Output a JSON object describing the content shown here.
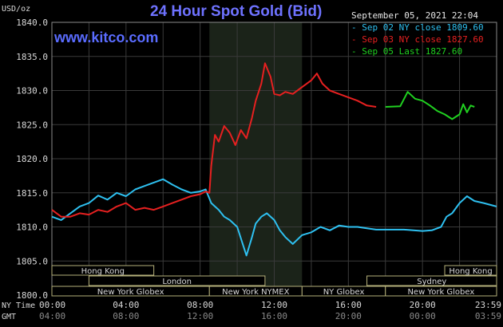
{
  "header": {
    "title": "24 Hour Spot Gold (Bid)",
    "site": "www.kitco.com",
    "y_unit": "USD/oz",
    "date": "September 05, 2021 22:04"
  },
  "legend": [
    {
      "label": "Sep 02 NY close 1809.60",
      "color": "#2ec0f0"
    },
    {
      "label": "Sep 03 NY close 1827.60",
      "color": "#e62020"
    },
    {
      "label": "Sep 05 Last 1827.60",
      "color": "#20d020"
    }
  ],
  "axis_row_labels": {
    "ny_time": "NY Time",
    "gmt": "GMT"
  },
  "chart_data": {
    "type": "line",
    "title": "24 Hour Spot Gold (Bid)",
    "ylabel": "USD/oz",
    "ylim": [
      1800,
      1840
    ],
    "xlim": [
      0,
      24
    ],
    "grid": true,
    "legend_position": "top-right",
    "y_ticks": [
      "1840.0",
      "1835.0",
      "1830.0",
      "1825.0",
      "1820.0",
      "1815.0",
      "1810.0",
      "1805.0",
      "1800.0"
    ],
    "x_ticks_ny": [
      "00:00",
      "04:00",
      "08:00",
      "12:00",
      "16:00",
      "20:00",
      "23:59"
    ],
    "x_ticks_gmt": [
      "04:00",
      "08:00",
      "12:00",
      "16:00",
      "20:00",
      "00:00",
      "03:59"
    ],
    "shaded_session": [
      8.5,
      13.5
    ],
    "sessions": [
      {
        "name": "Hong Kong",
        "start": 0,
        "end": 5.5,
        "row": 0
      },
      {
        "name": "Hong Kong",
        "start": 21.2,
        "end": 24,
        "row": 0
      },
      {
        "name": "London",
        "start": 2,
        "end": 11.5,
        "row": 1
      },
      {
        "name": "Sydney",
        "start": 17,
        "end": 24,
        "row": 1
      },
      {
        "name": "New York Globex",
        "start": 0,
        "end": 8.5,
        "row": 2
      },
      {
        "name": "New York NYMEX",
        "start": 8.5,
        "end": 13.5,
        "row": 2
      },
      {
        "name": "NY Globex",
        "start": 13.5,
        "end": 18,
        "row": 2
      },
      {
        "name": "New York Globex",
        "start": 18,
        "end": 24,
        "row": 2
      }
    ],
    "series": [
      {
        "name": "Sep 02 NY close 1809.60",
        "color": "#2ec0f0",
        "points": [
          [
            0,
            1811.5
          ],
          [
            0.5,
            1811.0
          ],
          [
            1.0,
            1812.0
          ],
          [
            1.5,
            1813.0
          ],
          [
            2.0,
            1813.5
          ],
          [
            2.5,
            1814.6
          ],
          [
            3.0,
            1814.0
          ],
          [
            3.5,
            1815.0
          ],
          [
            4.0,
            1814.5
          ],
          [
            4.5,
            1815.5
          ],
          [
            5.0,
            1816.0
          ],
          [
            5.5,
            1816.5
          ],
          [
            6.0,
            1817.0
          ],
          [
            6.5,
            1816.2
          ],
          [
            7.0,
            1815.5
          ],
          [
            7.5,
            1815.0
          ],
          [
            8.0,
            1815.2
          ],
          [
            8.3,
            1815.5
          ],
          [
            8.6,
            1813.5
          ],
          [
            9.0,
            1812.5
          ],
          [
            9.3,
            1811.5
          ],
          [
            9.6,
            1811.0
          ],
          [
            10.0,
            1810.0
          ],
          [
            10.3,
            1807.5
          ],
          [
            10.5,
            1805.8
          ],
          [
            10.8,
            1808.5
          ],
          [
            11.0,
            1810.5
          ],
          [
            11.3,
            1811.5
          ],
          [
            11.6,
            1812.0
          ],
          [
            12.0,
            1811.0
          ],
          [
            12.3,
            1809.5
          ],
          [
            12.6,
            1808.5
          ],
          [
            13.0,
            1807.5
          ],
          [
            13.5,
            1808.8
          ],
          [
            14.0,
            1809.2
          ],
          [
            14.5,
            1810.0
          ],
          [
            15.0,
            1809.5
          ],
          [
            15.5,
            1810.2
          ],
          [
            16.0,
            1810.0
          ],
          [
            16.5,
            1810.0
          ],
          [
            17.0,
            1809.8
          ],
          [
            17.5,
            1809.6
          ],
          [
            18.0,
            1809.6
          ],
          [
            19.0,
            1809.6
          ],
          [
            20.0,
            1809.4
          ],
          [
            20.5,
            1809.5
          ],
          [
            21.0,
            1810.0
          ],
          [
            21.3,
            1811.5
          ],
          [
            21.6,
            1812.0
          ],
          [
            22.0,
            1813.5
          ],
          [
            22.4,
            1814.5
          ],
          [
            22.8,
            1813.8
          ],
          [
            23.3,
            1813.5
          ],
          [
            23.99,
            1813.0
          ]
        ]
      },
      {
        "name": "Sep 03 NY close 1827.60",
        "color": "#e62020",
        "points": [
          [
            0,
            1812.5
          ],
          [
            0.5,
            1811.5
          ],
          [
            1.0,
            1811.5
          ],
          [
            1.5,
            1812.0
          ],
          [
            2.0,
            1811.8
          ],
          [
            2.5,
            1812.5
          ],
          [
            3.0,
            1812.2
          ],
          [
            3.5,
            1813.0
          ],
          [
            4.0,
            1813.5
          ],
          [
            4.5,
            1812.5
          ],
          [
            5.0,
            1812.8
          ],
          [
            5.5,
            1812.5
          ],
          [
            6.0,
            1813.0
          ],
          [
            6.5,
            1813.5
          ],
          [
            7.0,
            1814.0
          ],
          [
            7.5,
            1814.5
          ],
          [
            8.0,
            1814.8
          ],
          [
            8.3,
            1815.2
          ],
          [
            8.5,
            1815.0
          ],
          [
            8.6,
            1819.0
          ],
          [
            8.8,
            1823.5
          ],
          [
            9.0,
            1822.5
          ],
          [
            9.3,
            1824.8
          ],
          [
            9.6,
            1823.8
          ],
          [
            9.9,
            1822.0
          ],
          [
            10.2,
            1824.2
          ],
          [
            10.5,
            1823.0
          ],
          [
            10.8,
            1826.0
          ],
          [
            11.0,
            1828.5
          ],
          [
            11.3,
            1831.0
          ],
          [
            11.5,
            1834.0
          ],
          [
            11.8,
            1832.0
          ],
          [
            12.0,
            1829.5
          ],
          [
            12.3,
            1829.3
          ],
          [
            12.6,
            1829.8
          ],
          [
            13.0,
            1829.5
          ],
          [
            13.5,
            1830.5
          ],
          [
            14.0,
            1831.5
          ],
          [
            14.3,
            1832.5
          ],
          [
            14.6,
            1831.0
          ],
          [
            15.0,
            1830.0
          ],
          [
            15.5,
            1829.5
          ],
          [
            16.0,
            1829.0
          ],
          [
            16.5,
            1828.5
          ],
          [
            17.0,
            1827.8
          ],
          [
            17.5,
            1827.6
          ]
        ]
      },
      {
        "name": "Sep 05 Last 1827.60",
        "color": "#20d020",
        "points": [
          [
            18.0,
            1827.6
          ],
          [
            18.8,
            1827.7
          ],
          [
            19.2,
            1829.8
          ],
          [
            19.6,
            1828.8
          ],
          [
            20.0,
            1828.5
          ],
          [
            20.4,
            1827.8
          ],
          [
            20.8,
            1827.0
          ],
          [
            21.2,
            1826.5
          ],
          [
            21.6,
            1825.8
          ],
          [
            22.0,
            1826.5
          ],
          [
            22.2,
            1828.0
          ],
          [
            22.4,
            1826.8
          ],
          [
            22.6,
            1827.8
          ],
          [
            22.8,
            1827.6
          ]
        ]
      }
    ]
  }
}
